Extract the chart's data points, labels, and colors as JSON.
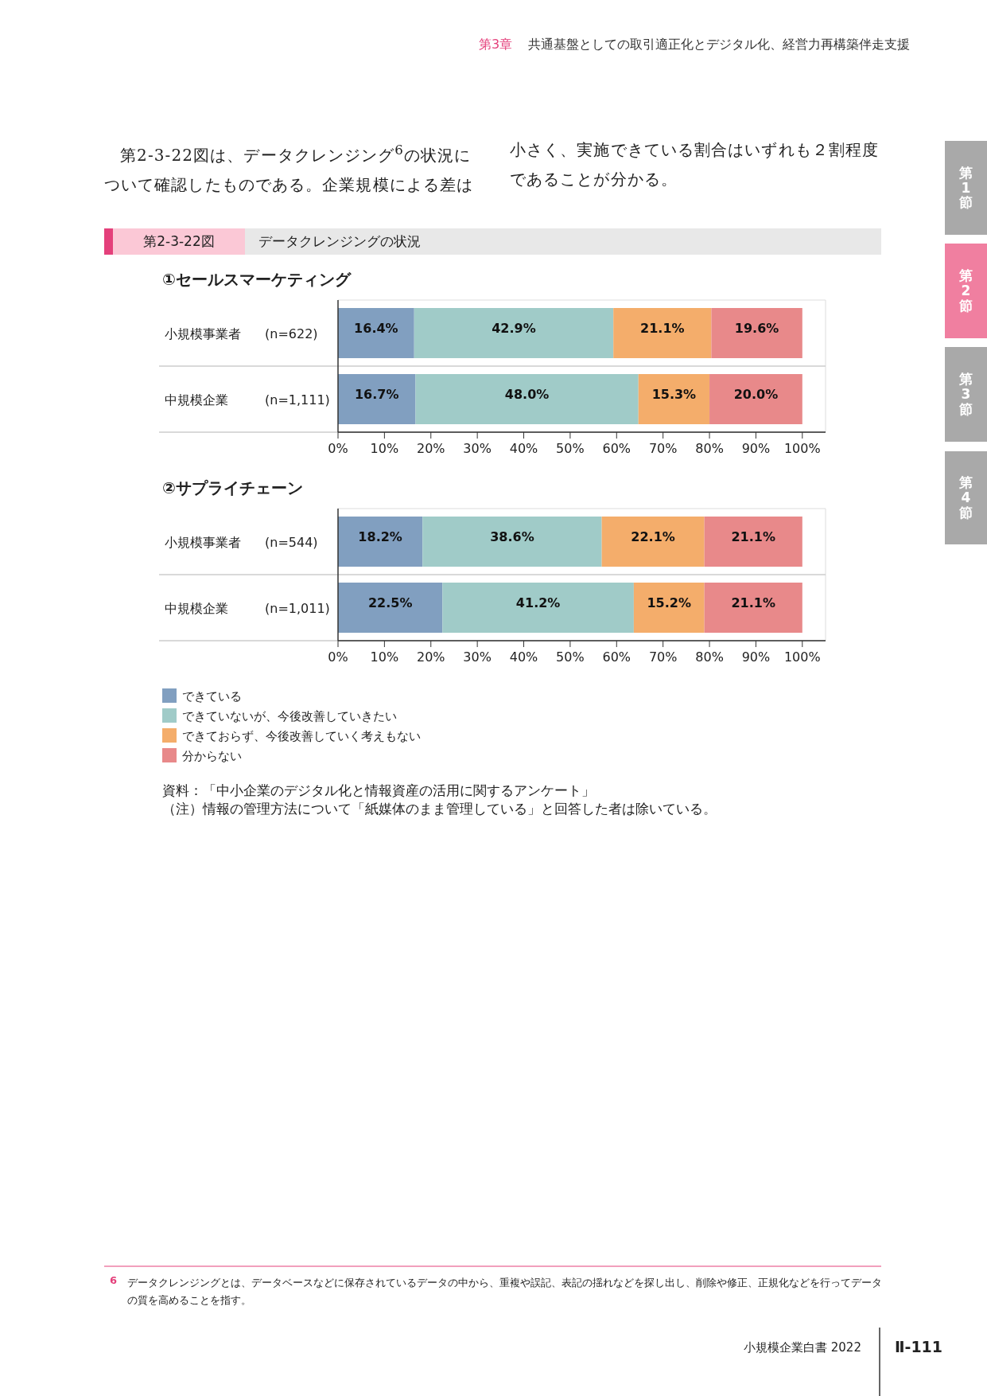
{
  "chart_data": [
    {
      "type": "bar",
      "orientation": "horizontal",
      "stacked": true,
      "title": "①セールスマーケティング",
      "categories": [
        "小規模事業者　(n=622)",
        "中規模企業　(n=1,111)"
      ],
      "series": [
        {
          "color": "#819fc0",
          "values": [
            16.4,
            16.7
          ],
          "value_labels": [
            "16.4%",
            "16.7%"
          ]
        },
        {
          "color": "#a0cbc8",
          "values": [
            42.9,
            48.0
          ],
          "value_labels": [
            "42.9%",
            "48.0%"
          ]
        },
        {
          "color": "#f4ad6b",
          "values": [
            21.1,
            15.3
          ],
          "value_labels": [
            "21.1%",
            "15.3%"
          ]
        },
        {
          "color": "#e8898a",
          "values": [
            19.6,
            20.0
          ],
          "value_labels": [
            "19.6%",
            "20.0%"
          ]
        }
      ],
      "xlim": [
        0,
        105
      ],
      "xticks": [
        {
          "value": 0,
          "label": "0%"
        },
        {
          "value": 10,
          "label": "10%"
        },
        {
          "value": 20,
          "label": "20%"
        },
        {
          "value": 30,
          "label": "30%"
        },
        {
          "value": 40,
          "label": "40%"
        },
        {
          "value": 50,
          "label": "50%"
        },
        {
          "value": 60,
          "label": "60%"
        },
        {
          "value": 70,
          "label": "70%"
        },
        {
          "value": 80,
          "label": "80%"
        },
        {
          "value": 90,
          "label": "90%"
        },
        {
          "value": 100,
          "label": "100%"
        }
      ],
      "grid": false,
      "annotations": [
        "第3章",
        "共通基盤としての取引適正化とデジタル化、経営力再構築伴走支援",
        "第2-3-22図は、データクレンジング$^{6}$の状況について確認したものである。企業規模による差は小さく、実施できている割合はいずれも２割程度であることが分かる。",
        "第2-3-22図",
        "データクレンジングの状況",
        "第1節",
        "第2節",
        "第3節",
        "第4節"
      ]
    },
    {
      "type": "bar",
      "orientation": "horizontal",
      "stacked": true,
      "title": "②サプライチェーン",
      "categories": [
        "小規模事業者　(n=544)",
        "中規模企業　(n=1,011)"
      ],
      "series": [
        {
          "name": "できている",
          "color": "#819fc0",
          "values": [
            18.2,
            22.5
          ],
          "value_labels": [
            "18.2%",
            "22.5%"
          ]
        },
        {
          "name": "できていないが、今後改善していきたい",
          "color": "#a0cbc8",
          "values": [
            38.6,
            41.2
          ],
          "value_labels": [
            "38.6%",
            "41.2%"
          ]
        },
        {
          "name": "できておらず、今後改善していく考えもない",
          "color": "#f4ad6b",
          "values": [
            22.1,
            15.2
          ],
          "value_labels": [
            "22.1%",
            "15.2%"
          ]
        },
        {
          "name": "分からない",
          "color": "#e8898a",
          "values": [
            21.1,
            21.1
          ],
          "value_labels": [
            "21.1%",
            "21.1%"
          ]
        }
      ],
      "xlim": [
        0,
        105
      ],
      "xticks": [
        {
          "value": 0,
          "label": "0%"
        },
        {
          "value": 10,
          "label": "10%"
        },
        {
          "value": 20,
          "label": "20%"
        },
        {
          "value": 30,
          "label": "30%"
        },
        {
          "value": 40,
          "label": "40%"
        },
        {
          "value": 50,
          "label": "50%"
        },
        {
          "value": 60,
          "label": "60%"
        },
        {
          "value": 70,
          "label": "70%"
        },
        {
          "value": 80,
          "label": "80%"
        },
        {
          "value": 90,
          "label": "90%"
        },
        {
          "value": 100,
          "label": "100%"
        }
      ],
      "grid": false,
      "legend": "bottom left",
      "annotations": [
        "資料：「中小企業のデジタル化と情報資産の活用に関するアンケート」",
        "（注）情報の管理方法について「紙媒体のまま管理している」と回答した者は除いている。",
        "6",
        "データクレンジングとは、データベースなどに保存されているデータの中から、重複や誤記、表記の揺れなどを探し出し、削除や修正、正規化などを行ってデータの質を高めることを指す。",
        "小規模企業白書 2022",
        "Ⅱ-111"
      ]
    }
  ]
}
